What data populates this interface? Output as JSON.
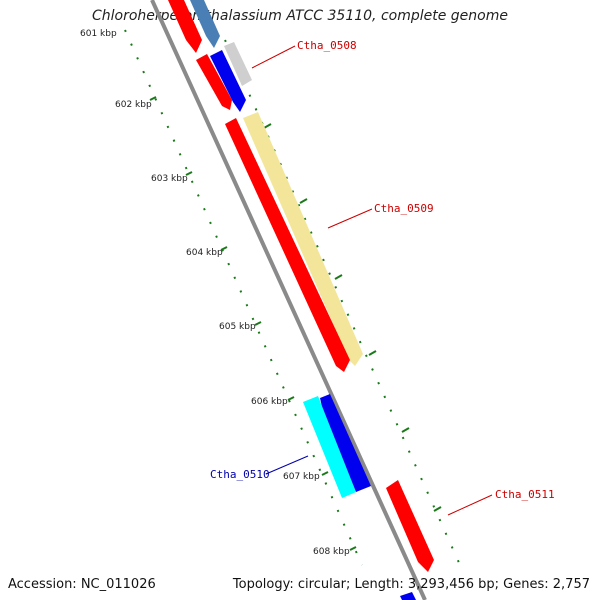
{
  "title": "Chloroherpeton thalassium ATCC 35110, complete genome",
  "accession": "Accession: NC_011026",
  "topology": "Topology: circular; Length: 3,293,456 bp; Genes: 2,757",
  "ticks": [
    "601 kbp",
    "602 kbp",
    "603 kbp",
    "604 kbp",
    "605 kbp",
    "606 kbp",
    "607 kbp",
    "608 kbp"
  ],
  "gene_labels": [
    {
      "name": "Ctha_0508",
      "color": "#cc0000"
    },
    {
      "name": "Ctha_0509",
      "color": "#cc0000"
    },
    {
      "name": "Ctha_0510",
      "color": "#0000aa"
    },
    {
      "name": "Ctha_0511",
      "color": "#cc0000"
    }
  ],
  "colors": {
    "backbone": "#8a8a8a",
    "red_feature": "#ff0000",
    "blue_feature": "#0000ee",
    "steel_feature": "#4a7fb5",
    "cyan_feature": "#00ffff",
    "yellow_feature": "#f3e69a",
    "tick_mark": "#1a7a1a"
  }
}
